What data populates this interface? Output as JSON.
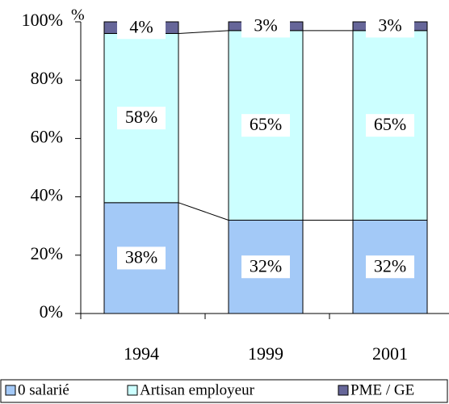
{
  "chart_data": {
    "type": "stacked_bar",
    "categories": [
      "1994",
      "1999",
      "2001"
    ],
    "series": [
      {
        "name": "0 salarié",
        "color": "#a3c9f7",
        "values": [
          38,
          32,
          32
        ],
        "value_labels": [
          "38%",
          "32%",
          "32%"
        ]
      },
      {
        "name": "Artisan employeur",
        "color": "#ccffff",
        "values": [
          58,
          65,
          65
        ],
        "value_labels": [
          "58%",
          "65%",
          "65%"
        ]
      },
      {
        "name": "PME / GE",
        "color": "#666699",
        "values": [
          4,
          3,
          3
        ],
        "value_labels": [
          "4%",
          "3%",
          "3%"
        ]
      }
    ],
    "ylim": [
      0,
      100
    ],
    "yticks": [
      {
        "value": 0,
        "label": "0%"
      },
      {
        "value": 20,
        "label": "20%"
      },
      {
        "value": 40,
        "label": "40%"
      },
      {
        "value": 60,
        "label": "60%"
      },
      {
        "value": 80,
        "label": "80%"
      },
      {
        "value": 100,
        "label": "100%"
      }
    ],
    "y_axis_unit": "%",
    "legend": "bottom"
  }
}
